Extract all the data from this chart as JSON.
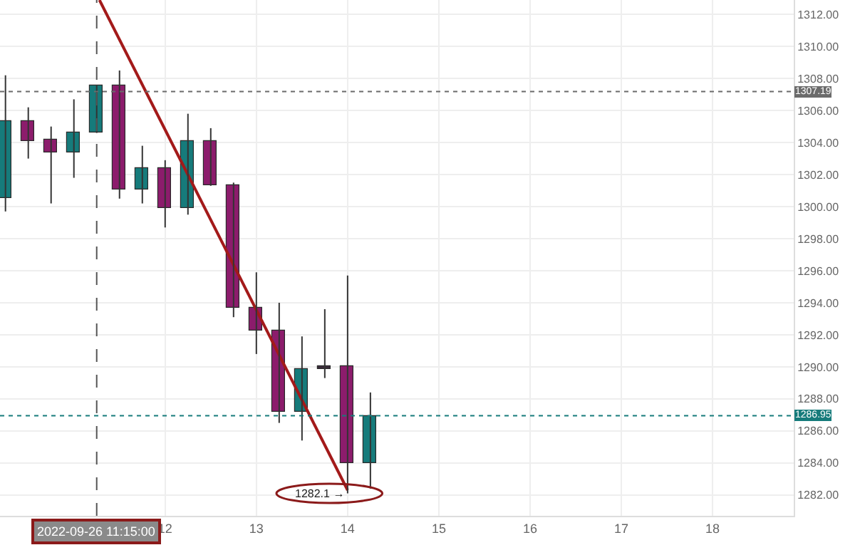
{
  "chart_data": {
    "type": "candlestick",
    "x": [
      10.25,
      10.5,
      10.75,
      11.0,
      11.25,
      11.5,
      11.75,
      12.0,
      12.25,
      12.5,
      12.75,
      13.0,
      13.25,
      13.5,
      13.75,
      14.0,
      14.25
    ],
    "ohlc": [
      [
        1300.5,
        1308.2,
        1299.7,
        1305.3
      ],
      [
        1305.3,
        1306.2,
        1303.0,
        1304.1
      ],
      [
        1304.2,
        1305.0,
        1300.2,
        1303.4
      ],
      [
        1303.4,
        1306.7,
        1301.8,
        1304.6
      ],
      [
        1304.6,
        1307.6,
        1304.6,
        1307.6
      ],
      [
        1307.6,
        1308.5,
        1300.5,
        1301.1
      ],
      [
        1301.1,
        1303.8,
        1300.2,
        1302.4
      ],
      [
        1302.4,
        1302.9,
        1298.7,
        1299.9
      ],
      [
        1299.9,
        1305.8,
        1299.5,
        1304.1
      ],
      [
        1304.1,
        1304.9,
        1301.3,
        1301.3
      ],
      [
        1301.3,
        1301.5,
        1293.1,
        1293.7
      ],
      [
        1293.7,
        1295.9,
        1290.8,
        1292.3
      ],
      [
        1292.3,
        1294.0,
        1286.5,
        1287.2
      ],
      [
        1287.2,
        1291.9,
        1285.4,
        1289.9
      ],
      [
        1290.0,
        1293.6,
        1289.3,
        1289.9
      ],
      [
        1290.0,
        1295.7,
        1282.1,
        1284.0
      ],
      [
        1284.0,
        1288.4,
        1282.4,
        1286.95
      ]
    ],
    "colors": [
      "#167b7b",
      "#8c1c6c",
      "#8c1c6c",
      "#167b7b",
      "#167b7b",
      "#8c1c6c",
      "#167b7b",
      "#8c1c6c",
      "#167b7b",
      "#8c1c6c",
      "#8c1c6c",
      "#8c1c6c",
      "#8c1c6c",
      "#167b7b",
      "#3a2a3a",
      "#8c1c6c",
      "#167b7b"
    ],
    "series": [
      {
        "type": "line",
        "color": "#a31a1a",
        "x": [
          11.28,
          14.0
        ],
        "values": [
          1312.9,
          1282.3
        ]
      }
    ],
    "annotations": [
      {
        "text": "1282.1 →",
        "x": 14.0,
        "y": 1282.1
      }
    ],
    "ref_lines": [
      {
        "axis": "y",
        "value": 1307.19,
        "label": "1307.19",
        "color": "#6b6b6b",
        "line_style": "dotted"
      },
      {
        "axis": "y",
        "value": 1286.95,
        "label": "1286.95",
        "color": "#167b7b",
        "line_style": "dotted"
      },
      {
        "axis": "x",
        "value": 11.25,
        "label": "2022-09-26 11:15:00",
        "color": "#555555",
        "line_style": "dashed"
      }
    ],
    "xlim": [
      10.19,
      18.89
    ],
    "xticks": [
      12,
      13,
      14,
      15,
      16,
      17,
      18
    ],
    "ylim": [
      1280.7,
      1312.9
    ],
    "yticks": [
      {
        "value": 1282,
        "label": "1282.00"
      },
      {
        "value": 1284,
        "label": "1284.00"
      },
      {
        "value": 1286,
        "label": "1286.00"
      },
      {
        "value": 1288,
        "label": "1288.00"
      },
      {
        "value": 1290,
        "label": "1290.00"
      },
      {
        "value": 1292,
        "label": "1292.00"
      },
      {
        "value": 1294,
        "label": "1294.00"
      },
      {
        "value": 1296,
        "label": "1296.00"
      },
      {
        "value": 1298,
        "label": "1298.00"
      },
      {
        "value": 1300,
        "label": "1300.00"
      },
      {
        "value": 1302,
        "label": "1302.00"
      },
      {
        "value": 1304,
        "label": "1304.00"
      },
      {
        "value": 1306,
        "label": "1306.00"
      },
      {
        "value": 1308,
        "label": "1308.00"
      },
      {
        "value": 1310,
        "label": "1310.00"
      },
      {
        "value": 1312,
        "label": "1312.00"
      }
    ],
    "grid": true
  }
}
